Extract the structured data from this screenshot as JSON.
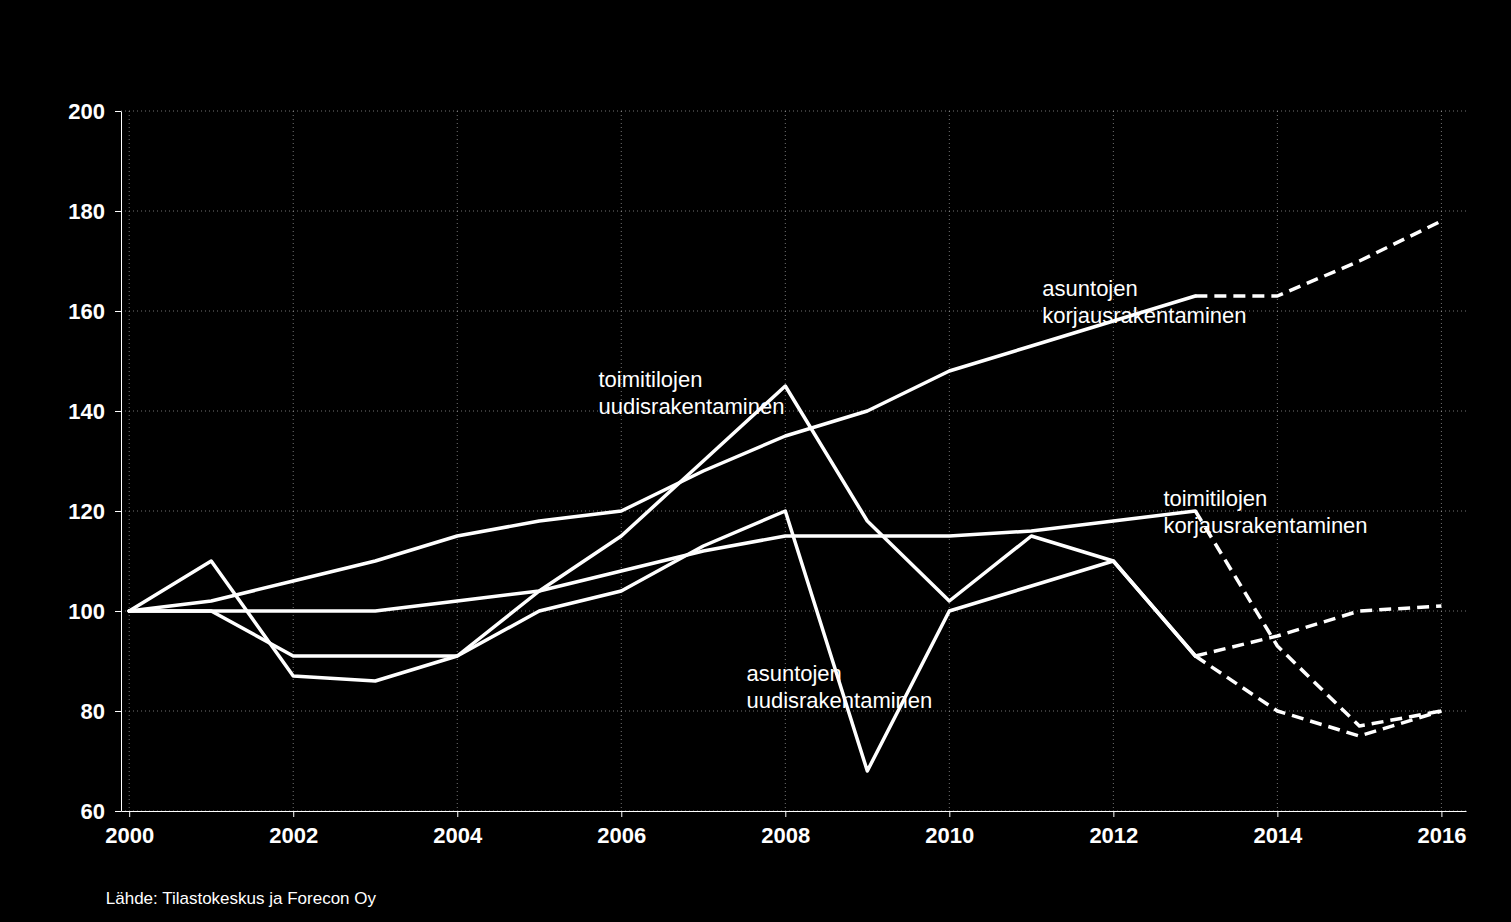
{
  "chart_data": {
    "type": "line",
    "x": [
      2000,
      2001,
      2002,
      2003,
      2004,
      2005,
      2006,
      2007,
      2008,
      2009,
      2010,
      2011,
      2012,
      2013,
      2014,
      2015,
      2016
    ],
    "series": [
      {
        "color": "#ffffff",
        "line_style": "solid",
        "values": [
          100,
          102,
          106,
          110,
          115,
          118,
          120,
          128,
          135,
          140,
          148,
          153,
          158,
          163,
          null,
          null,
          null
        ]
      },
      {
        "color": "#ffffff",
        "line_style": "solid",
        "values": [
          100,
          100,
          100,
          100,
          102,
          104,
          108,
          112,
          115,
          115,
          115,
          116,
          118,
          120,
          null,
          null,
          null
        ]
      },
      {
        "color": "#ffffff",
        "line_style": "solid",
        "values": [
          100,
          110,
          87,
          86,
          91,
          100,
          104,
          113,
          120,
          68,
          100,
          105,
          110,
          91,
          null,
          null,
          null
        ]
      },
      {
        "color": "#ffffff",
        "line_style": "solid",
        "values": [
          100,
          100,
          91,
          91,
          91,
          104,
          115,
          130,
          145,
          118,
          102,
          115,
          110,
          91,
          null,
          null,
          null
        ]
      },
      {
        "color": "#ffffff",
        "line_style": "dashed",
        "values": [
          null,
          null,
          null,
          null,
          null,
          null,
          null,
          null,
          null,
          null,
          null,
          null,
          null,
          163,
          163,
          170,
          178
        ]
      },
      {
        "color": "#ffffff",
        "line_style": "dashed",
        "values": [
          null,
          null,
          null,
          null,
          null,
          null,
          null,
          null,
          null,
          null,
          null,
          null,
          null,
          120,
          93,
          77,
          80
        ]
      },
      {
        "color": "#ffffff",
        "line_style": "dashed",
        "values": [
          null,
          null,
          null,
          null,
          null,
          null,
          null,
          null,
          null,
          null,
          null,
          null,
          null,
          91,
          80,
          75,
          80
        ]
      },
      {
        "color": "#ffffff",
        "line_style": "dashed",
        "values": [
          null,
          null,
          null,
          null,
          null,
          null,
          null,
          null,
          null,
          null,
          null,
          null,
          null,
          91,
          95,
          100,
          101
        ]
      }
    ],
    "xlim": [
      1999.9,
      2016.3
    ],
    "xticks": [
      2000,
      2002,
      2004,
      2006,
      2008,
      2010,
      2012,
      2014,
      2016
    ],
    "ylim": [
      60,
      200
    ],
    "yticks": [
      60,
      80,
      100,
      120,
      140,
      160,
      180,
      200
    ],
    "grid": true,
    "annotations": [
      {
        "text": "asuntojen\nkorjausrakentaminen"
      },
      {
        "text": "toimitilojen\nuudisrakentaminen"
      },
      {
        "text": "toimitilojen\nkorjausrakentaminen"
      },
      {
        "text": "asuntojen\nuudisrakentaminen"
      }
    ],
    "source": "Lähde: Tilastokeskus ja Forecon Oy"
  }
}
